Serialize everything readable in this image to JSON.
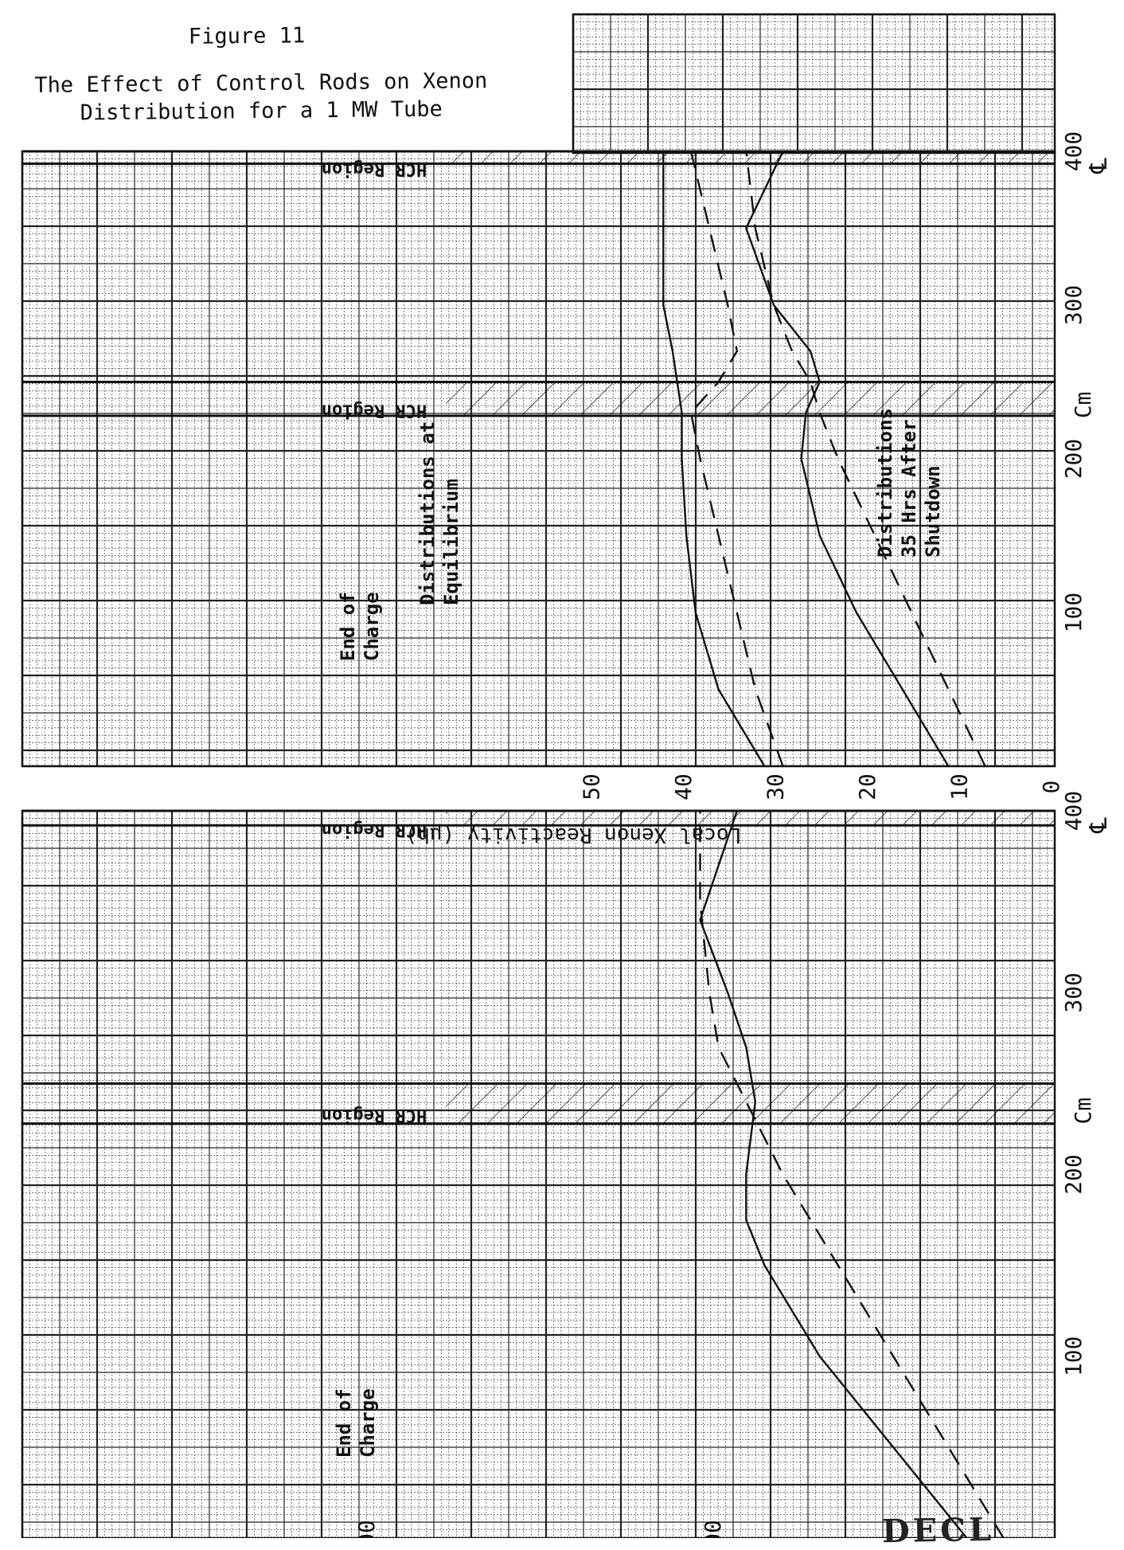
{
  "figure_title": "Figure 11",
  "caption_line1": "The Effect of Control Rods on Xenon",
  "caption_line2": "Distribution for a 1 MW Tube",
  "stamp_text": "DECL",
  "chart_data": [
    {
      "type": "line",
      "panel": "upper",
      "x_unit_label": "Cm",
      "centerline_label": "℄",
      "y_label": "Local Xenon Reactivity (μh)",
      "x_ticks": [
        100,
        200,
        300,
        400
      ],
      "y_ticks": [
        0,
        10,
        20,
        30,
        40,
        50
      ],
      "xlim": [
        0,
        400
      ],
      "ylim": [
        0,
        60
      ],
      "grid": true,
      "hatched_regions": [
        {
          "label": "HCR Region",
          "x_start": 228,
          "x_end": 250
        },
        {
          "label": "HCR Region",
          "x_start": 392,
          "x_end": 400
        }
      ],
      "annotations": [
        "End of Charge",
        "Distributions at Equilibrium",
        "Distributions 35 Hrs After Shutdown"
      ],
      "series": [
        {
          "group": "Distributions at Equilibrium",
          "style": "solid",
          "x": [
            0,
            50,
            100,
            150,
            200,
            230,
            250,
            270,
            300,
            350,
            400
          ],
          "y": [
            32,
            37,
            39.5,
            40.5,
            41,
            41,
            41.5,
            42,
            43,
            43,
            43
          ]
        },
        {
          "group": "Distributions at Equilibrium",
          "style": "dashed",
          "x": [
            0,
            50,
            100,
            150,
            200,
            230,
            250,
            270,
            300,
            350,
            400
          ],
          "y": [
            30,
            33,
            35,
            37,
            39,
            40,
            37,
            35,
            36,
            38,
            40
          ]
        },
        {
          "group": "Distributions 35 Hrs After Shutdown",
          "style": "solid",
          "x": [
            0,
            50,
            100,
            150,
            200,
            230,
            250,
            270,
            300,
            350,
            400
          ],
          "y": [
            12,
            17,
            22,
            26,
            28,
            27.5,
            26,
            27,
            31,
            34,
            30
          ]
        },
        {
          "group": "Distributions 35 Hrs After Shutdown",
          "style": "dashed",
          "x": [
            0,
            50,
            100,
            150,
            200,
            230,
            250,
            270,
            300,
            350,
            400
          ],
          "y": [
            8,
            12,
            16,
            20,
            24,
            26,
            27,
            29,
            31,
            33,
            34
          ]
        }
      ]
    },
    {
      "type": "line",
      "panel": "lower",
      "x_unit_label": "Cm",
      "centerline_label": "℄",
      "y_ticks_visible_text": [
        "00",
        "00"
      ],
      "x_ticks": [
        100,
        200,
        300,
        400
      ],
      "xlim": [
        0,
        400
      ],
      "ylim": [
        0,
        60
      ],
      "grid": true,
      "hatched_regions": [
        {
          "label": "HCR Region",
          "x_start": 228,
          "x_end": 250
        },
        {
          "label": "HCR Region",
          "x_start": 392,
          "x_end": 400
        }
      ],
      "annotations": [
        "End of Charge"
      ],
      "series": [
        {
          "style": "solid",
          "x": [
            0,
            50,
            100,
            150,
            175,
            200,
            240,
            270,
            300,
            340,
            400
          ],
          "y": [
            10,
            18,
            26,
            32,
            34,
            34,
            33,
            34,
            36,
            39,
            35
          ]
        },
        {
          "style": "dashed",
          "x": [
            0,
            50,
            100,
            150,
            200,
            240,
            270,
            300,
            350,
            400
          ],
          "y": [
            6,
            12,
            18,
            24,
            30,
            34,
            37,
            38,
            39,
            39
          ]
        }
      ]
    }
  ]
}
